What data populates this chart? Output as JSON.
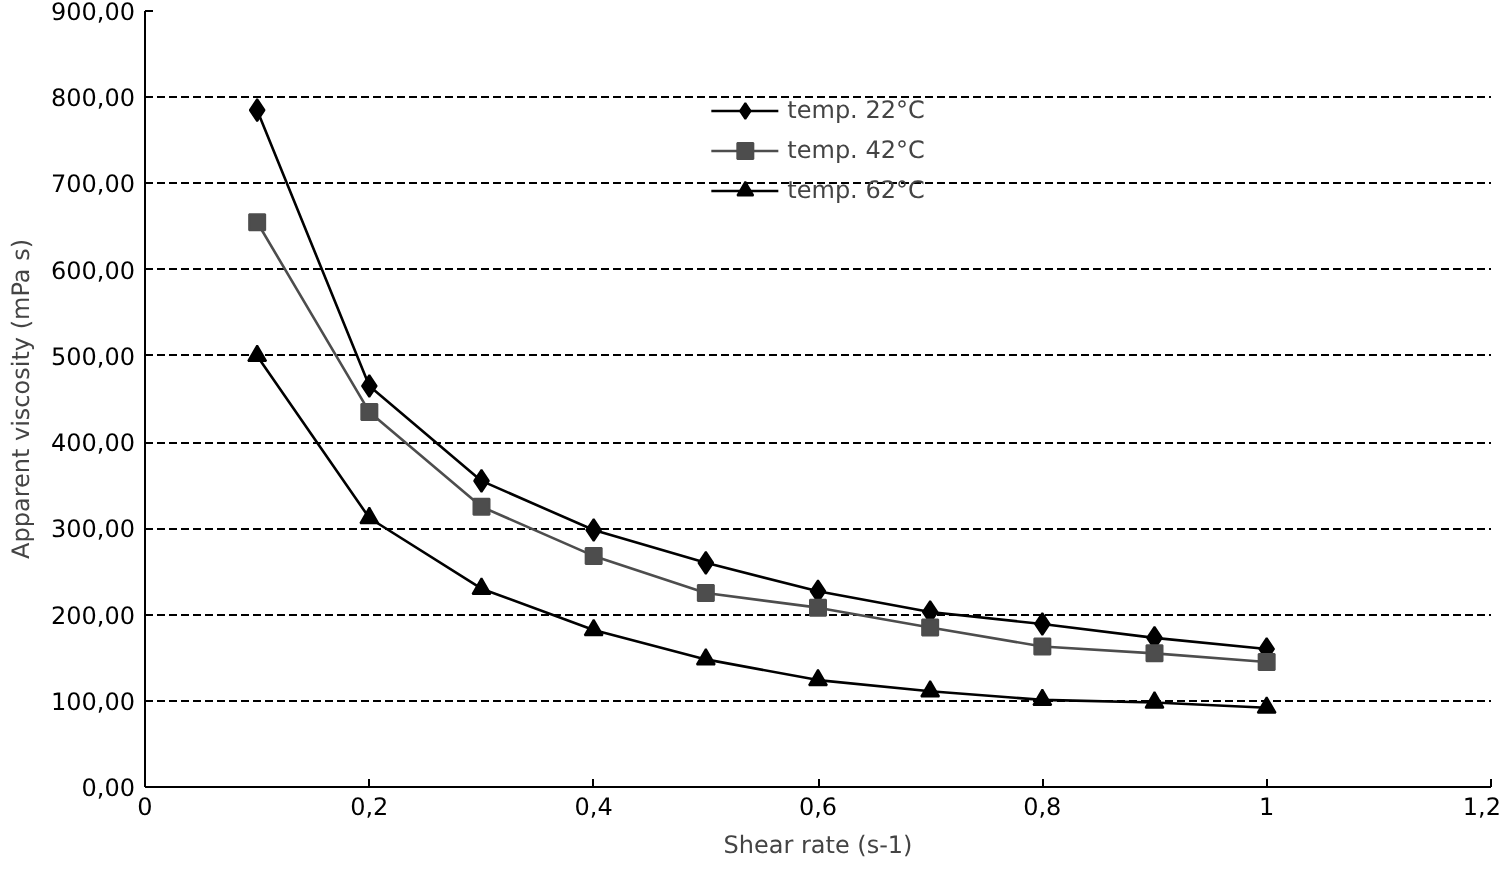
{
  "chart_data": {
    "type": "line",
    "xlabel": "Shear rate (s-1)",
    "ylabel": "Apparent viscosity (mPa s)",
    "x": [
      0.1,
      0.2,
      0.3,
      0.4,
      0.5,
      0.6,
      0.7,
      0.8,
      0.9,
      1.0
    ],
    "series": [
      {
        "name": "temp. 22°C",
        "color": "#000000",
        "marker": "diamond",
        "values": [
          785,
          465,
          355,
          298,
          260,
          227,
          203,
          189,
          173,
          160
        ]
      },
      {
        "name": "temp. 42°C",
        "color": "#4d4d4d",
        "marker": "square",
        "values": [
          655,
          435,
          325,
          268,
          225,
          208,
          185,
          163,
          155,
          145
        ]
      },
      {
        "name": "temp. 62°C",
        "color": "#000000",
        "marker": "triangle",
        "values": [
          500,
          312,
          230,
          182,
          148,
          124,
          111,
          101,
          98,
          92
        ]
      }
    ],
    "xlim": [
      0,
      1.2
    ],
    "xticks": [
      0,
      {
        "value": 0.2,
        "label": "0,2"
      },
      {
        "value": 0.4,
        "label": "0,4"
      },
      {
        "value": 0.6,
        "label": "0,6"
      },
      {
        "value": 0.8,
        "label": "0,8"
      },
      1,
      {
        "value": 1.2,
        "label": "1,2"
      }
    ],
    "ylim": [
      0,
      900
    ],
    "yticks": [
      {
        "value": 0,
        "label": "0,00"
      },
      {
        "value": 100,
        "label": "100,00"
      },
      {
        "value": 200,
        "label": "200,00"
      },
      {
        "value": 300,
        "label": "300,00"
      },
      {
        "value": 400,
        "label": "400,00"
      },
      {
        "value": 500,
        "label": "500,00"
      },
      {
        "value": 600,
        "label": "600,00"
      },
      {
        "value": 700,
        "label": "700,00"
      },
      {
        "value": 800,
        "label": "800,00"
      },
      {
        "value": 900,
        "label": "900,00"
      }
    ],
    "grid": "y",
    "legend": "top",
    "line_style": "solid"
  }
}
